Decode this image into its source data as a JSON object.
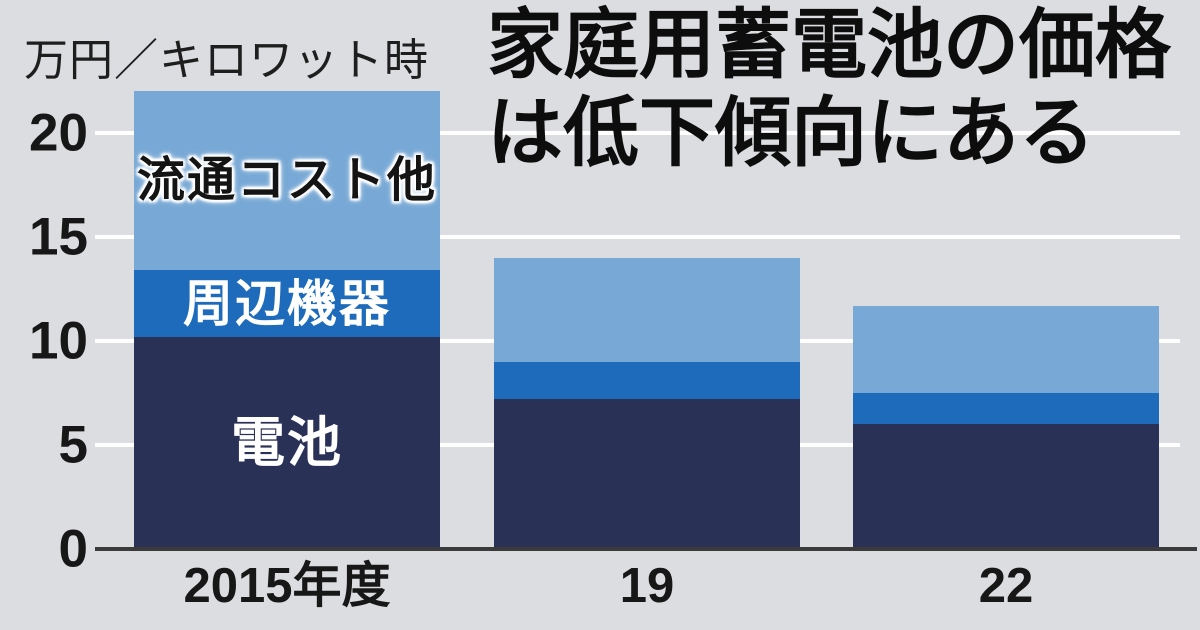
{
  "header": {
    "unit_label": "万円／キロワット時",
    "title_line1": "家庭用蓄電池の価格",
    "title_line2": "は低下傾向にある"
  },
  "chart_data": {
    "type": "bar",
    "stacked": true,
    "title": "家庭用蓄電池の価格は低下傾向にある",
    "ylabel": "万円／キロワット時",
    "xlabel": "",
    "categories": [
      "2015年度",
      "19",
      "22"
    ],
    "series": [
      {
        "name": "電池",
        "values": [
          10.2,
          7.2,
          6.0
        ],
        "color": "#2a3157",
        "label_color": "#ffffff",
        "label_halo": false
      },
      {
        "name": "周辺機器",
        "values": [
          3.2,
          1.8,
          1.5
        ],
        "color": "#1d6bba",
        "label_color": "#ffffff",
        "label_halo": false
      },
      {
        "name": "流通コスト他",
        "values": [
          8.6,
          5.0,
          4.2
        ],
        "color": "#78a9d6",
        "label_color": "#141414",
        "label_halo": true
      }
    ],
    "totals": [
      22.0,
      14.0,
      11.7
    ],
    "ylim": [
      0,
      22
    ],
    "yticks": [
      0,
      5,
      10,
      15,
      20
    ],
    "grid": true,
    "gridline_color": "#ffffff",
    "axis_color": "#3b3b3b",
    "background_color": "#dcdde0",
    "legend_position": "labels-inside-first-bar"
  }
}
